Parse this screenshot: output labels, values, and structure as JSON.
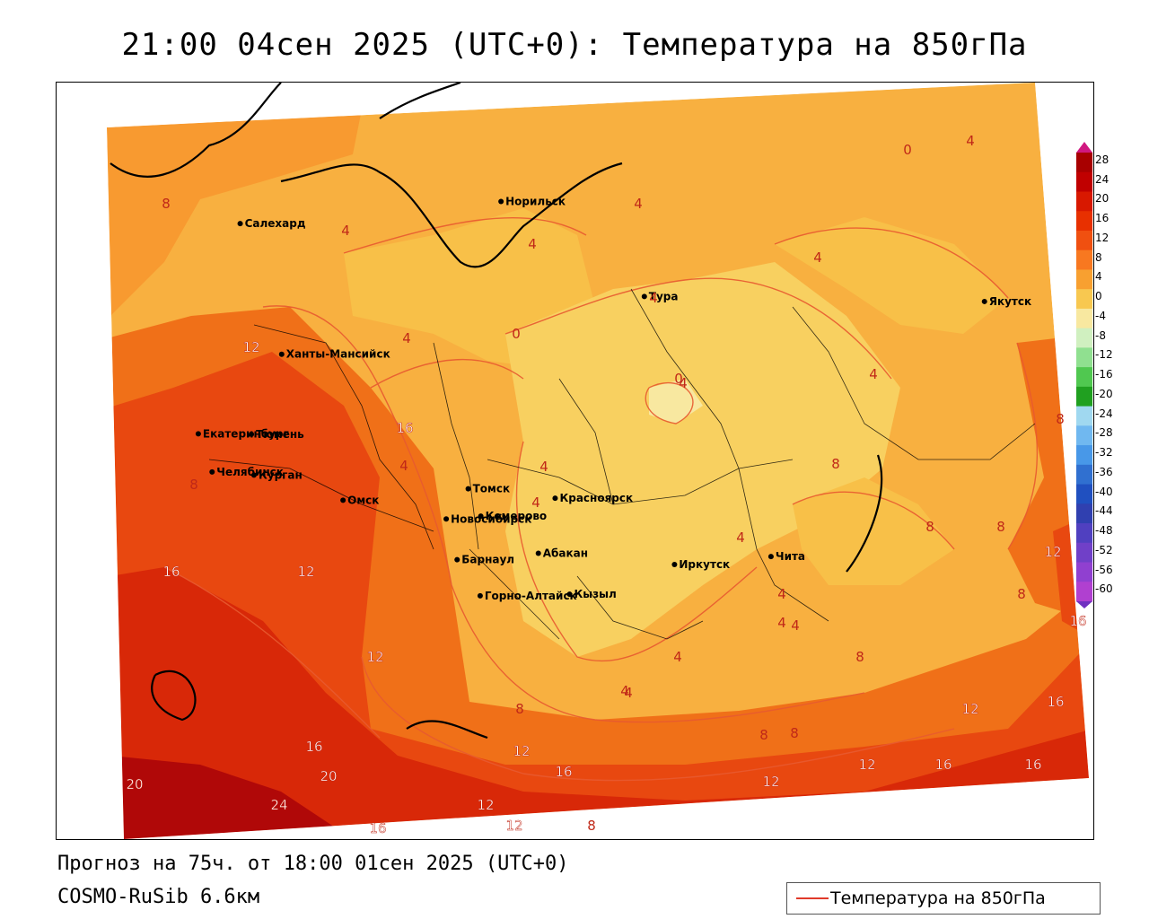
{
  "title": "21:00 04сен 2025 (UTC+0): Температура на 850гПа",
  "footer": {
    "forecast": "Прогноз на 75ч. от 18:00 01сен 2025 (UTC+0)",
    "model": "COSMO-RuSib 6.6км"
  },
  "legend": {
    "label": "Температура на 850гПа",
    "line_color": "#e03a2a"
  },
  "colorbar": {
    "labels": [
      "28",
      "24",
      "20",
      "16",
      "12",
      "8",
      "4",
      "0",
      "-4",
      "-8",
      "-12",
      "-16",
      "-20",
      "-24",
      "-28",
      "-32",
      "-36",
      "-40",
      "-44",
      "-48",
      "-52",
      "-56",
      "-60"
    ],
    "colors": [
      "#a80000",
      "#c00000",
      "#d81800",
      "#e83000",
      "#f05010",
      "#f87820",
      "#f8a030",
      "#f8c850",
      "#f8e8a0",
      "#d0f0c0",
      "#90e090",
      "#50c850",
      "#20a020",
      "#a0d8f0",
      "#70b8f0",
      "#4898e8",
      "#3070d0",
      "#2050c0",
      "#3040b0",
      "#5040c0",
      "#7040c8",
      "#9040d0",
      "#b040d0"
    ]
  },
  "cities": [
    {
      "name": "Салехард",
      "lon": 66.6,
      "lat": 66.5
    },
    {
      "name": "Норильск",
      "lon": 88.2,
      "lat": 69.3
    },
    {
      "name": "Якутск",
      "lon": 129.7,
      "lat": 62.0
    },
    {
      "name": "Тура",
      "lon": 100.2,
      "lat": 64.3
    },
    {
      "name": "Ханты-Мансийск",
      "lon": 69.0,
      "lat": 61.0
    },
    {
      "name": "Екатеринбург",
      "lon": 60.6,
      "lat": 56.8
    },
    {
      "name": "Тюмень",
      "lon": 65.5,
      "lat": 57.2
    },
    {
      "name": "Челябинск",
      "lon": 61.4,
      "lat": 55.2
    },
    {
      "name": "Курган",
      "lon": 65.3,
      "lat": 55.4
    },
    {
      "name": "Омск",
      "lon": 73.4,
      "lat": 55.0
    },
    {
      "name": "Новосибирск",
      "lon": 82.9,
      "lat": 55.0
    },
    {
      "name": "Томск",
      "lon": 85.0,
      "lat": 56.5
    },
    {
      "name": "Кемерово",
      "lon": 86.1,
      "lat": 55.4
    },
    {
      "name": "Красноярск",
      "lon": 92.9,
      "lat": 56.0
    },
    {
      "name": "Абакан",
      "lon": 91.4,
      "lat": 53.7
    },
    {
      "name": "Барнаул",
      "lon": 83.8,
      "lat": 53.3
    },
    {
      "name": "Горно-Алтайск",
      "lon": 85.9,
      "lat": 51.9
    },
    {
      "name": "Кызыл",
      "lon": 94.4,
      "lat": 51.7
    },
    {
      "name": "Иркутск",
      "lon": 104.3,
      "lat": 52.3
    },
    {
      "name": "Чита",
      "lon": 113.5,
      "lat": 52.0
    }
  ],
  "isolines": [
    "8",
    "4",
    "4",
    "4",
    "4",
    "0",
    "4",
    "4",
    "4",
    "0",
    "4",
    "4",
    "4",
    "8",
    "8",
    "12",
    "8",
    "16",
    "16",
    "12",
    "4",
    "4",
    "4",
    "4",
    "8",
    "8",
    "12",
    "8",
    "16",
    "16",
    "20",
    "16",
    "20",
    "24",
    "16",
    "12",
    "12",
    "16",
    "12",
    "8",
    "8",
    "12",
    "8",
    "12",
    "12",
    "16",
    "16",
    "8",
    "4",
    "4",
    "12",
    "4",
    "0",
    "4",
    "8",
    "4"
  ]
}
